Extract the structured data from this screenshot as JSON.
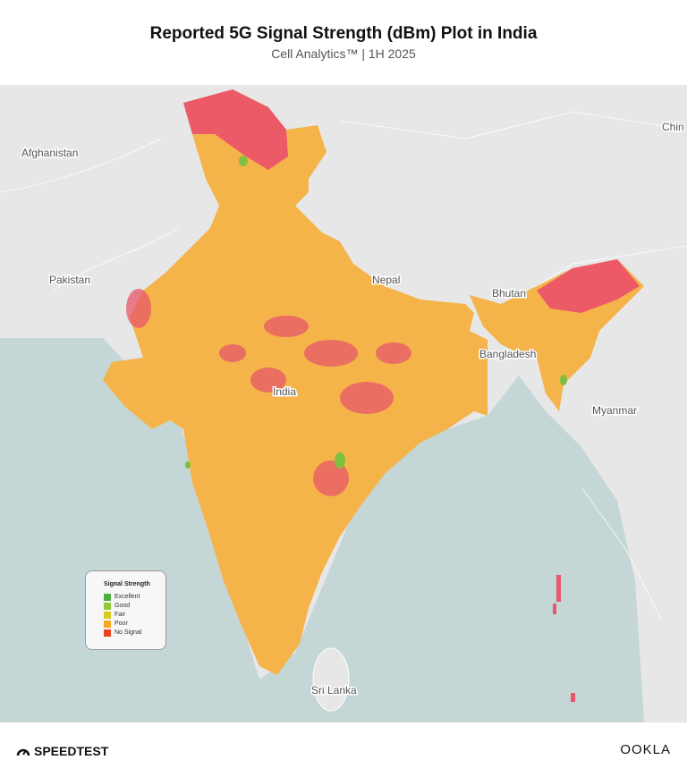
{
  "header": {
    "title": "Reported 5G Signal Strength (dBm) Plot in India",
    "subtitle": "Cell Analytics™ | 1H 2025"
  },
  "map_labels": [
    "Afghanistan",
    "Pakistan",
    "Nepal",
    "Bhutan",
    "Bangladesh",
    "India",
    "Myanmar",
    "Chin",
    "Sri Lanka"
  ],
  "legend": {
    "title": "Signal Strength",
    "items": [
      {
        "label": "Excellent",
        "color": "#4fae3c"
      },
      {
        "label": "Good",
        "color": "#93c93d"
      },
      {
        "label": "Fair",
        "color": "#d8cc1f"
      },
      {
        "label": "Poor",
        "color": "#f5a624"
      },
      {
        "label": "No Signal",
        "color": "#e8411e"
      }
    ]
  },
  "footer": {
    "left": "SPEEDTEST",
    "right": "OOKLA"
  }
}
